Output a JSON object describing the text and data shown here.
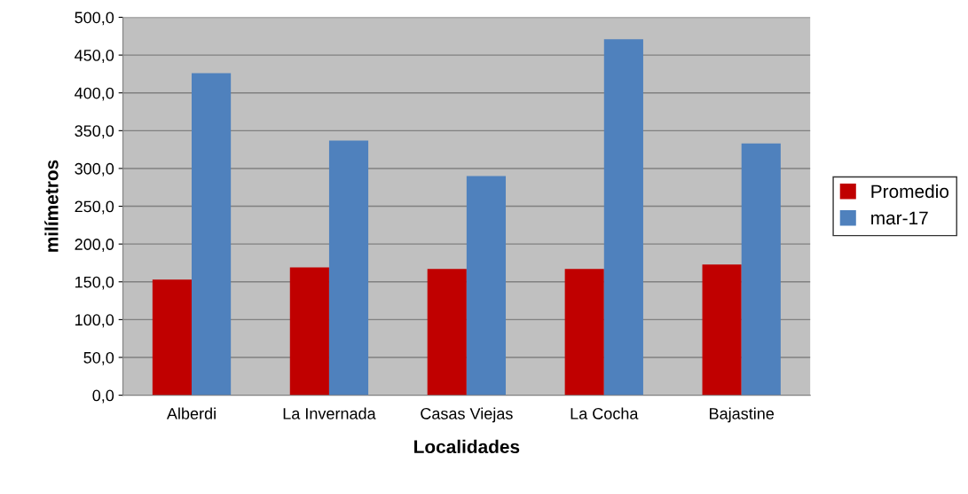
{
  "chart_data": {
    "type": "bar",
    "xlabel": "Localidades",
    "ylabel": "milímetros",
    "categories": [
      "Alberdi",
      "La Invernada",
      "Casas Viejas",
      "La Cocha",
      "Bajastine"
    ],
    "series": [
      {
        "name": "Promedio",
        "color": "#c00000",
        "values": [
          153,
          169,
          167,
          167,
          173
        ]
      },
      {
        "name": "mar-17",
        "color": "#4f81bd",
        "values": [
          426,
          337,
          290,
          471,
          333
        ]
      }
    ],
    "ylim": [
      0,
      500
    ],
    "yticks": [
      {
        "value": 0,
        "label": "0,0"
      },
      {
        "value": 50,
        "label": "50,0"
      },
      {
        "value": 100,
        "label": "100,0"
      },
      {
        "value": 150,
        "label": "150,0"
      },
      {
        "value": 200,
        "label": "200,0"
      },
      {
        "value": 250,
        "label": "250,0"
      },
      {
        "value": 300,
        "label": "300,0"
      },
      {
        "value": 350,
        "label": "350,0"
      },
      {
        "value": 400,
        "label": "400,0"
      },
      {
        "value": 450,
        "label": "450,0"
      },
      {
        "value": 500,
        "label": "500,0"
      }
    ],
    "grid": "y",
    "legend": "right"
  }
}
